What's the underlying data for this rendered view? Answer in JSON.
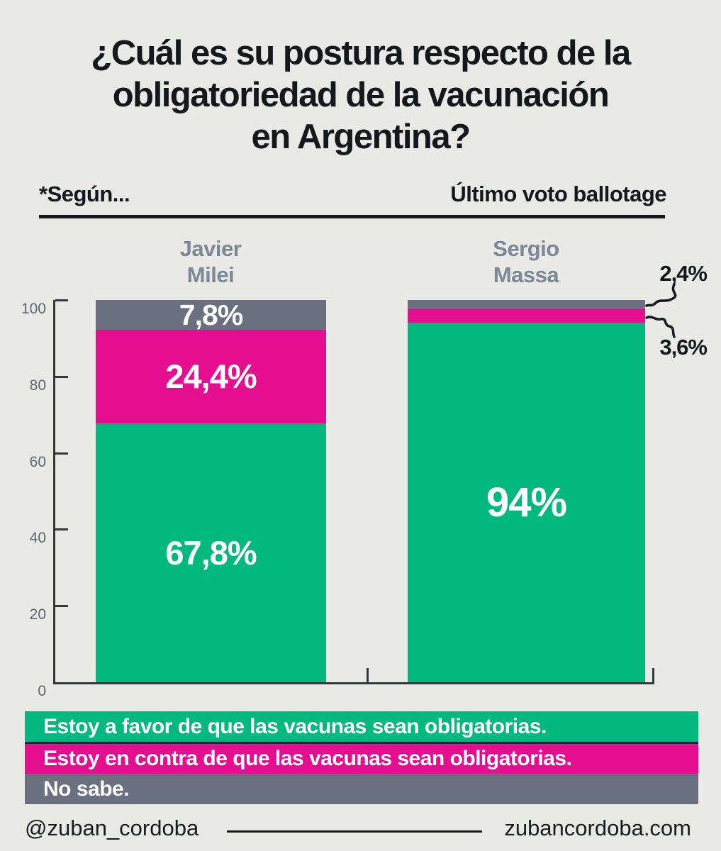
{
  "title": {
    "lines": [
      "¿Cuál es su postura respecto de la",
      "obligatoriedad de la vacunación",
      "en Argentina?"
    ]
  },
  "header": {
    "left": "*Según...",
    "right": "Último voto ballotage"
  },
  "columns": [
    {
      "line1": "Javier",
      "line2": "Milei"
    },
    {
      "line1": "Sergio",
      "line2": "Massa"
    }
  ],
  "callouts": {
    "top": "2,4%",
    "bottom": "3,6%"
  },
  "legend": {
    "items": [
      {
        "series": "favor",
        "label": "Estoy a favor de que las vacunas sean obligatorias."
      },
      {
        "series": "contra",
        "label": "Estoy en contra de que las vacunas sean obligatorias."
      },
      {
        "series": "no_sabe",
        "label": "No sabe."
      }
    ]
  },
  "footer": {
    "handle": "@zuban_cordoba",
    "site": "zubancordoba.com"
  },
  "colors": {
    "background": "#e9eae5",
    "ink": "#14171c",
    "green": "#01b87d",
    "magenta": "#e50d90",
    "gray": "#6a707f",
    "column_label_gray": "#7e8795",
    "axis_label_gray": "#5d6570"
  },
  "chart_data": {
    "type": "bar",
    "subtype": "stacked-vertical",
    "unit": "%",
    "categories": [
      "Javier Milei",
      "Sergio Massa"
    ],
    "series": [
      {
        "key": "favor",
        "name": "Estoy a favor de que las vacunas sean obligatorias.",
        "color": "#01b87d",
        "values": [
          67.8,
          94
        ]
      },
      {
        "key": "contra",
        "name": "Estoy en contra de que las vacunas sean obligatorias.",
        "color": "#e50d90",
        "values": [
          24.4,
          3.6
        ]
      },
      {
        "key": "no_sabe",
        "name": "No sabe.",
        "color": "#6a707f",
        "values": [
          7.8,
          2.4
        ]
      }
    ],
    "bars": [
      {
        "category": "Javier Milei",
        "segments": [
          {
            "series": "favor",
            "value": 67.8,
            "label": "67,8%"
          },
          {
            "series": "contra",
            "value": 24.4,
            "label": "24,4%"
          },
          {
            "series": "no_sabe",
            "value": 7.8,
            "label": "7,8%"
          }
        ]
      },
      {
        "category": "Sergio Massa",
        "segments": [
          {
            "series": "favor",
            "value": 94,
            "label": "94%"
          },
          {
            "series": "contra",
            "value": 3.6,
            "label": null,
            "callout": "3,6%"
          },
          {
            "series": "no_sabe",
            "value": 2.4,
            "label": null,
            "callout": "2,4%"
          }
        ]
      }
    ],
    "ylim": [
      0,
      100
    ],
    "yticks": [
      0,
      20,
      40,
      60,
      80,
      100
    ],
    "xlabel": "",
    "ylabel": "",
    "grid": false,
    "legend_position": "bottom"
  }
}
